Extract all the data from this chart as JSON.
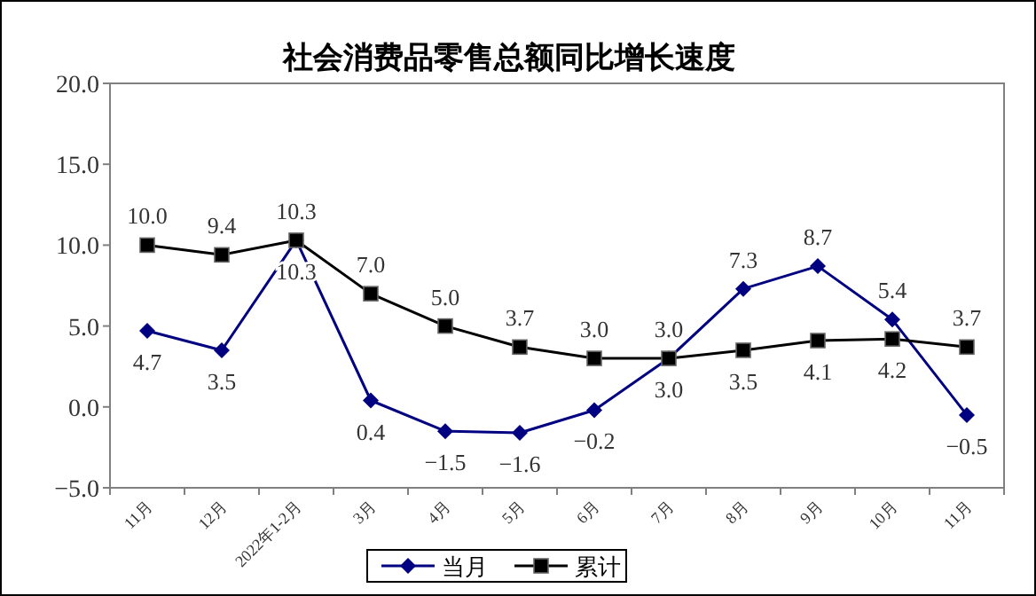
{
  "chart_data": {
    "type": "line",
    "title": "社会消费品零售总额同比增长速度",
    "categories": [
      "11月",
      "12月",
      "2022年1-2月",
      "3月",
      "4月",
      "5月",
      "6月",
      "7月",
      "8月",
      "9月",
      "10月",
      "11月"
    ],
    "series": [
      {
        "name": "当月",
        "color": "#000080",
        "marker": "diamond",
        "values": [
          4.7,
          3.5,
          10.3,
          0.4,
          -1.5,
          -1.6,
          -0.2,
          3.0,
          7.3,
          8.7,
          5.4,
          -0.5
        ],
        "value_labels": [
          "4.7",
          "3.5",
          "10.3",
          "0.4",
          "−1.5",
          "−1.6",
          "−0.2",
          "3.0",
          "7.3",
          "8.7",
          "5.4",
          "−0.5"
        ]
      },
      {
        "name": "累计",
        "color": "#000000",
        "marker": "square",
        "values": [
          10.0,
          9.4,
          10.3,
          7.0,
          5.0,
          3.7,
          3.0,
          3.0,
          3.5,
          4.1,
          4.2,
          3.7
        ],
        "value_labels": [
          "10.0",
          "9.4",
          "10.3",
          "7.0",
          "5.0",
          "3.7",
          "3.0",
          "3.0",
          "3.5",
          "4.1",
          "4.2",
          "3.7"
        ]
      }
    ],
    "ylim": [
      -5,
      20
    ],
    "yticks": [
      {
        "value": -5,
        "label": "−5.0"
      },
      {
        "value": 0,
        "label": "0.0"
      },
      {
        "value": 5,
        "label": "5.0"
      },
      {
        "value": 10,
        "label": "10.0"
      },
      {
        "value": 15,
        "label": "15.0"
      },
      {
        "value": 20,
        "label": "20.0"
      }
    ],
    "grid": false,
    "legend": "bottom"
  }
}
